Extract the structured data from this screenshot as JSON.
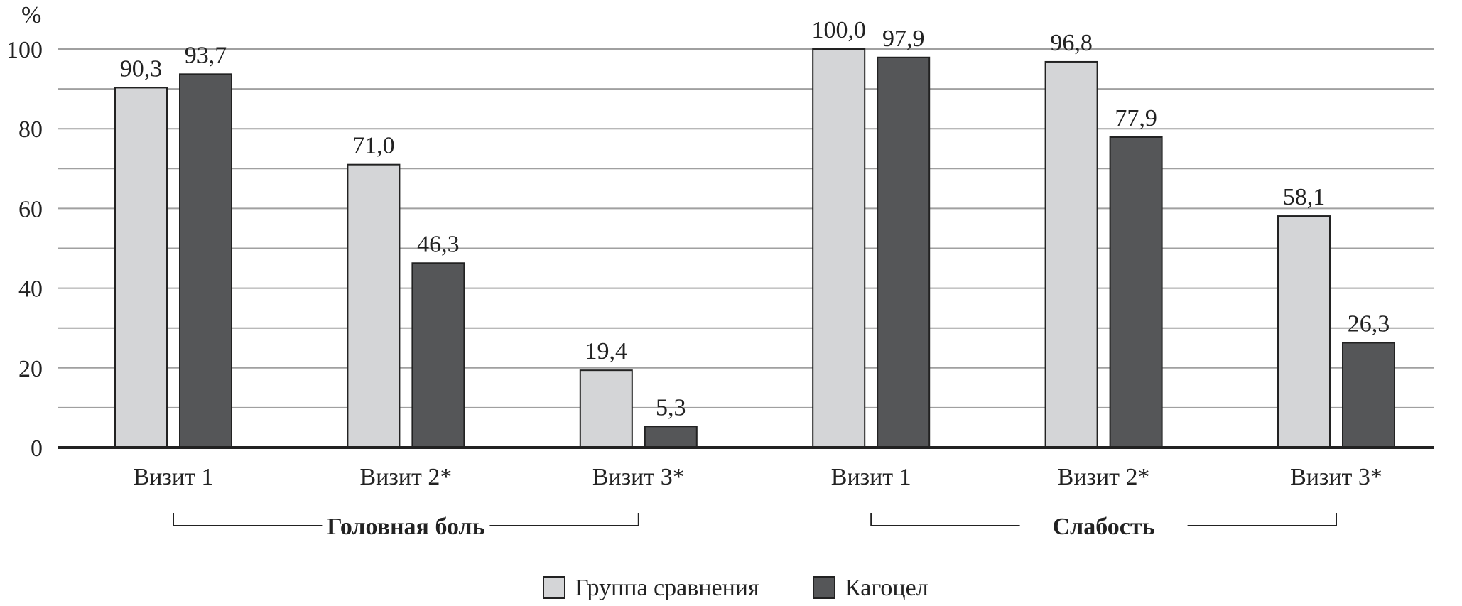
{
  "chart_data": {
    "type": "bar",
    "ylabel": "%",
    "ylim": [
      0,
      100
    ],
    "yticks": [
      0,
      20,
      40,
      60,
      80,
      100
    ],
    "grid": true,
    "categories": [
      "Визит 1",
      "Визит 2*",
      "Визит 3*",
      "Визит 1",
      "Визит 2*",
      "Визит 3*"
    ],
    "groups": [
      {
        "label": "Головная боль",
        "categories": [
          0,
          1,
          2
        ]
      },
      {
        "label": "Слабость",
        "categories": [
          3,
          4,
          5
        ]
      }
    ],
    "series": [
      {
        "name": "Группа сравнения",
        "color": "#d4d5d7",
        "values": [
          90.3,
          71.0,
          19.4,
          100.0,
          96.8,
          58.1
        ],
        "labels": [
          "90,3",
          "71,0",
          "19,4",
          "100,0",
          "96,8",
          "58,1"
        ]
      },
      {
        "name": "Кагоцел",
        "color": "#555658",
        "values": [
          93.7,
          46.3,
          5.3,
          97.9,
          77.9,
          26.3
        ],
        "labels": [
          "93,7",
          "46,3",
          "5,3",
          "97,9",
          "77,9",
          "26,3"
        ]
      }
    ],
    "legend_position": "bottom-center"
  }
}
